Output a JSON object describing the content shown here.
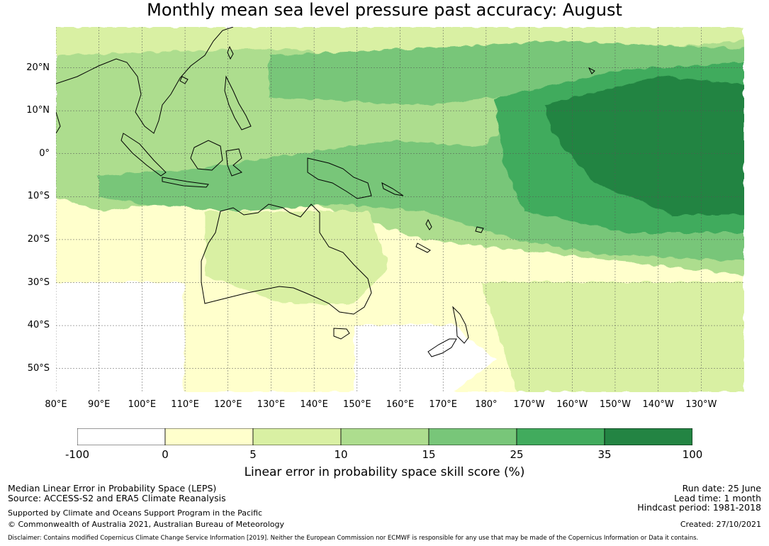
{
  "title": "Monthly mean sea level pressure past accuracy: August",
  "map": {
    "lat_labels": [
      "20°N",
      "10°N",
      "0°",
      "10°S",
      "20°S",
      "30°S",
      "40°S",
      "50°S"
    ],
    "lat_values": [
      20,
      10,
      0,
      -10,
      -20,
      -30,
      -40,
      -50
    ],
    "lon_labels": [
      "80°E",
      "90°E",
      "100°E",
      "110°E",
      "120°E",
      "130°E",
      "140°E",
      "150°E",
      "160°E",
      "170°E",
      "180°",
      "170°W",
      "160°W",
      "150°W",
      "140°W",
      "130°W"
    ],
    "lon_values": [
      80,
      90,
      100,
      110,
      120,
      130,
      140,
      150,
      160,
      170,
      180,
      190,
      200,
      210,
      220,
      230
    ],
    "extent": {
      "lon_min": 80,
      "lon_max": 240,
      "lat_min": -55.5,
      "lat_max": 29.5
    }
  },
  "colorbar": {
    "ticks": [
      "-100",
      "0",
      "5",
      "10",
      "15",
      "25",
      "35",
      "100"
    ],
    "colors": [
      "#ffffff",
      "#ffffcc",
      "#d9f0a3",
      "#addd8e",
      "#78c679",
      "#41ab5d",
      "#238443"
    ],
    "label": "Linear error in probability space skill score (%)"
  },
  "footer": {
    "left_line1": "Median Linear Error in Probability Space (LEPS)",
    "left_line2": "Source: ACCESS-S2 and ERA5 Climate Reanalysis",
    "left_line3": "Supported by Climate and Oceans Support Program in the Pacific",
    "left_line4": "© Commonwealth of Australia 2021, Australian Bureau of Meteorology",
    "right_line1": "Run date: 25 June",
    "right_line2": "Lead time: 1 month",
    "right_line3": "Hindcast period: 1981-2018",
    "right_line4": "Created: 27/10/2021",
    "disclaimer": "Disclaimer: Contains modified Copernicus Climate Change Service Information [2019]. Neither the European Commission nor ECMWF is responsible for any use that may be made of the Copernicus Information or Data it contains."
  }
}
